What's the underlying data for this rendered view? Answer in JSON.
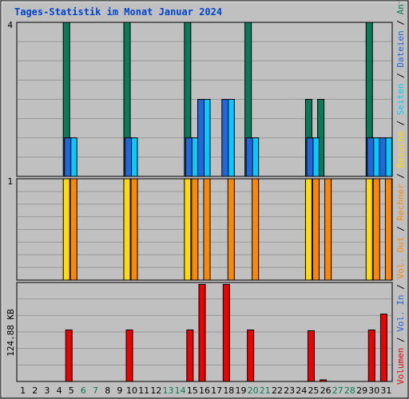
{
  "chart_data": {
    "type": "bar",
    "title": "Tages-Statistik im Monat Januar 2024",
    "days": [
      "1",
      "2",
      "3",
      "4",
      "5",
      "6",
      "7",
      "8",
      "9",
      "10",
      "11",
      "12",
      "13",
      "14",
      "15",
      "16",
      "17",
      "18",
      "19",
      "20",
      "21",
      "22",
      "23",
      "24",
      "25",
      "26",
      "27",
      "28",
      "29",
      "30",
      "31"
    ],
    "weekend_days": [
      "6",
      "7",
      "13",
      "14",
      "20",
      "21",
      "27",
      "28"
    ],
    "panels": [
      {
        "id": "anfragen",
        "ylim": [
          0,
          4
        ],
        "y_tick_label": "4",
        "series": [
          {
            "name": "Anfragen",
            "color": "#0b7a5a",
            "values": [
              0,
              0,
              0,
              0,
              4,
              0,
              0,
              0,
              0,
              4,
              0,
              0,
              0,
              0,
              4,
              0,
              0,
              0,
              0,
              4,
              0,
              0,
              0,
              0,
              2,
              2,
              0,
              0,
              0,
              4,
              0
            ]
          },
          {
            "name": "Seiten",
            "color": "#00ccff",
            "values": [
              0,
              0,
              0,
              0,
              1,
              0,
              0,
              0,
              0,
              1,
              0,
              0,
              0,
              0,
              1,
              2,
              0,
              2,
              0,
              1,
              0,
              0,
              0,
              0,
              1,
              0,
              0,
              0,
              0,
              1,
              1
            ]
          },
          {
            "name": "Dateien",
            "color": "#2266dd",
            "values": [
              0,
              0,
              0,
              0,
              1,
              0,
              0,
              0,
              0,
              1,
              0,
              0,
              0,
              0,
              1,
              2,
              0,
              2,
              0,
              1,
              0,
              0,
              0,
              0,
              1,
              0,
              0,
              0,
              0,
              1,
              1
            ]
          }
        ]
      },
      {
        "id": "besuche",
        "ylim": [
          0,
          1
        ],
        "y_tick_label": "1",
        "series": [
          {
            "name": "Besuche",
            "color": "#ffdd00",
            "values": [
              0,
              0,
              0,
              0,
              1,
              0,
              0,
              0,
              0,
              1,
              0,
              0,
              0,
              0,
              1,
              0,
              0,
              0,
              0,
              0,
              0,
              0,
              0,
              0,
              1,
              0,
              0,
              0,
              0,
              1,
              0
            ]
          },
          {
            "name": "Rechner",
            "color": "#ff8800",
            "values": [
              0,
              0,
              0,
              0,
              1,
              0,
              0,
              0,
              0,
              1,
              0,
              0,
              0,
              0,
              1,
              1,
              0,
              1,
              0,
              1,
              0,
              0,
              0,
              0,
              1,
              1,
              0,
              0,
              0,
              1,
              1
            ]
          }
        ]
      },
      {
        "id": "volumen",
        "ylim": [
          0,
          249.76
        ],
        "y_tick_label": "124.88 KB",
        "y_tick_value": 124.88,
        "series": [
          {
            "name": "Volumen",
            "color": "#ee0000",
            "values": [
              0,
              0,
              0,
              0,
              130,
              0,
              0,
              0,
              0,
              130,
              0,
              0,
              0,
              0,
              130,
              245,
              0,
              245,
              0,
              130,
              0,
              0,
              0,
              0,
              128,
              4,
              0,
              0,
              0,
              130,
              170
            ]
          },
          {
            "name": "Vol. In",
            "color": "#2266dd",
            "values": []
          },
          {
            "name": "Vol. Out",
            "color": "#ff8800",
            "values": []
          }
        ]
      }
    ],
    "grid": true,
    "right_legend_parts": [
      {
        "text": "Volumen",
        "color": "#ee0000"
      },
      {
        "text": "/",
        "color": "#000000"
      },
      {
        "text": "Vol. In",
        "color": "#2266dd"
      },
      {
        "text": "/",
        "color": "#000000"
      },
      {
        "text": "Vol. Out",
        "color": "#ff8800"
      },
      {
        "text": "/",
        "color": "#000000"
      },
      {
        "text": "Rechner",
        "color": "#ff8800"
      },
      {
        "text": "/",
        "color": "#000000"
      },
      {
        "text": "Besuche",
        "color": "#ffdd00"
      },
      {
        "text": "/",
        "color": "#000000"
      },
      {
        "text": "Seiten",
        "color": "#00ccff"
      },
      {
        "text": "/",
        "color": "#000000"
      },
      {
        "text": "Dateien",
        "color": "#2266dd"
      },
      {
        "text": "/",
        "color": "#000000"
      },
      {
        "text": "Anfragen",
        "color": "#0b7a5a"
      }
    ],
    "colors": {
      "title": "#0044cc",
      "weekend_label": "#0b7a5a",
      "weekday_label": "#000000",
      "panel_bg": "#c0c0c0",
      "grid": "#999999"
    }
  }
}
